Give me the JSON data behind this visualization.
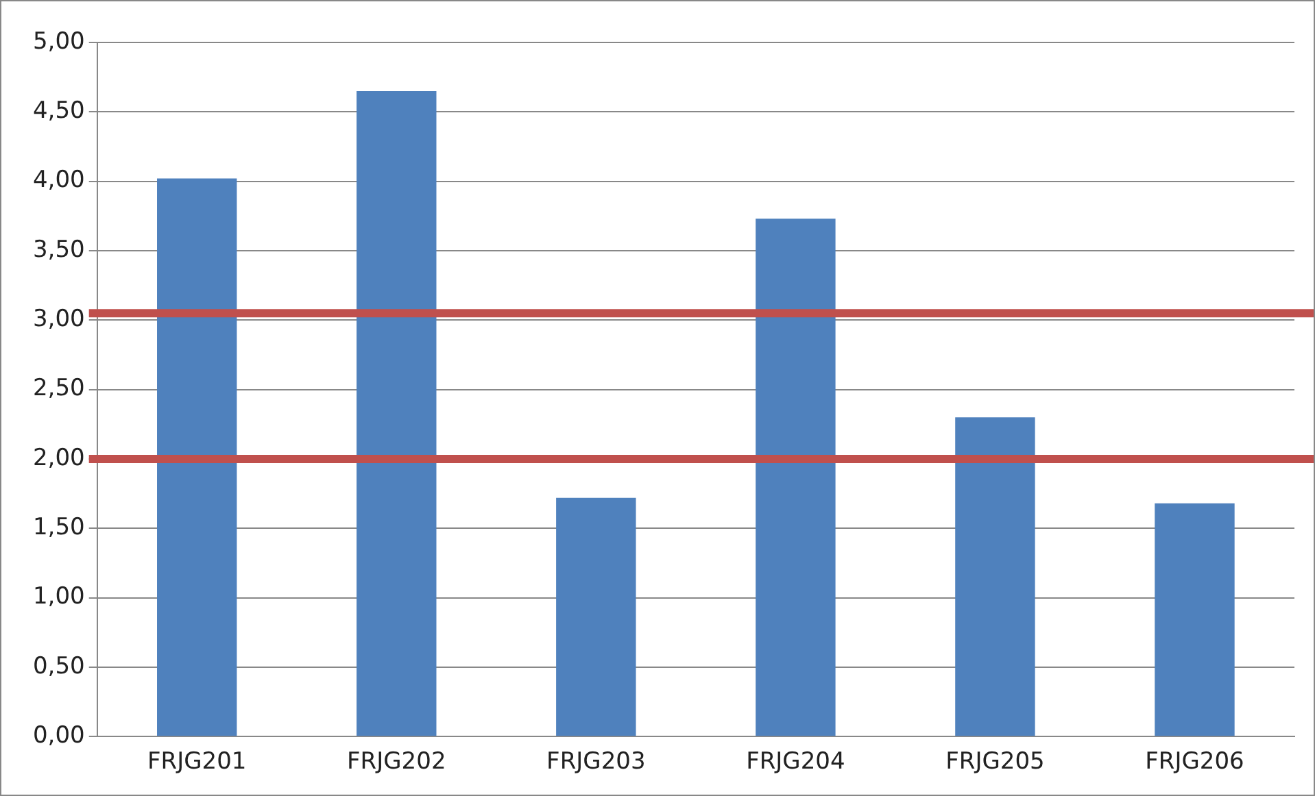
{
  "chart_data": {
    "type": "bar",
    "categories": [
      "FRJG201",
      "FRJG202",
      "FRJG203",
      "FRJG204",
      "FRJG205",
      "FRJG206"
    ],
    "values": [
      4.02,
      4.65,
      1.72,
      3.73,
      2.3,
      1.68
    ],
    "color": "#4f81bd",
    "ylim": [
      0,
      5
    ],
    "yticks": [
      {
        "value": 0,
        "label": "0,00"
      },
      {
        "value": 0.5,
        "label": "0,50"
      },
      {
        "value": 1,
        "label": "1,00"
      },
      {
        "value": 1.5,
        "label": "1,50"
      },
      {
        "value": 2,
        "label": "2,00"
      },
      {
        "value": 2.5,
        "label": "2,50"
      },
      {
        "value": 3,
        "label": "3,00"
      },
      {
        "value": 3.5,
        "label": "3,50"
      },
      {
        "value": 4,
        "label": "4,00"
      },
      {
        "value": 4.5,
        "label": "4,50"
      },
      {
        "value": 5,
        "label": "5,00"
      }
    ],
    "grid": "y",
    "legend": false,
    "ref_lines": [
      {
        "axis": "y",
        "value": 3.05,
        "color": "#c0504d"
      },
      {
        "axis": "y",
        "value": 2,
        "color": "#c0504d"
      }
    ]
  }
}
